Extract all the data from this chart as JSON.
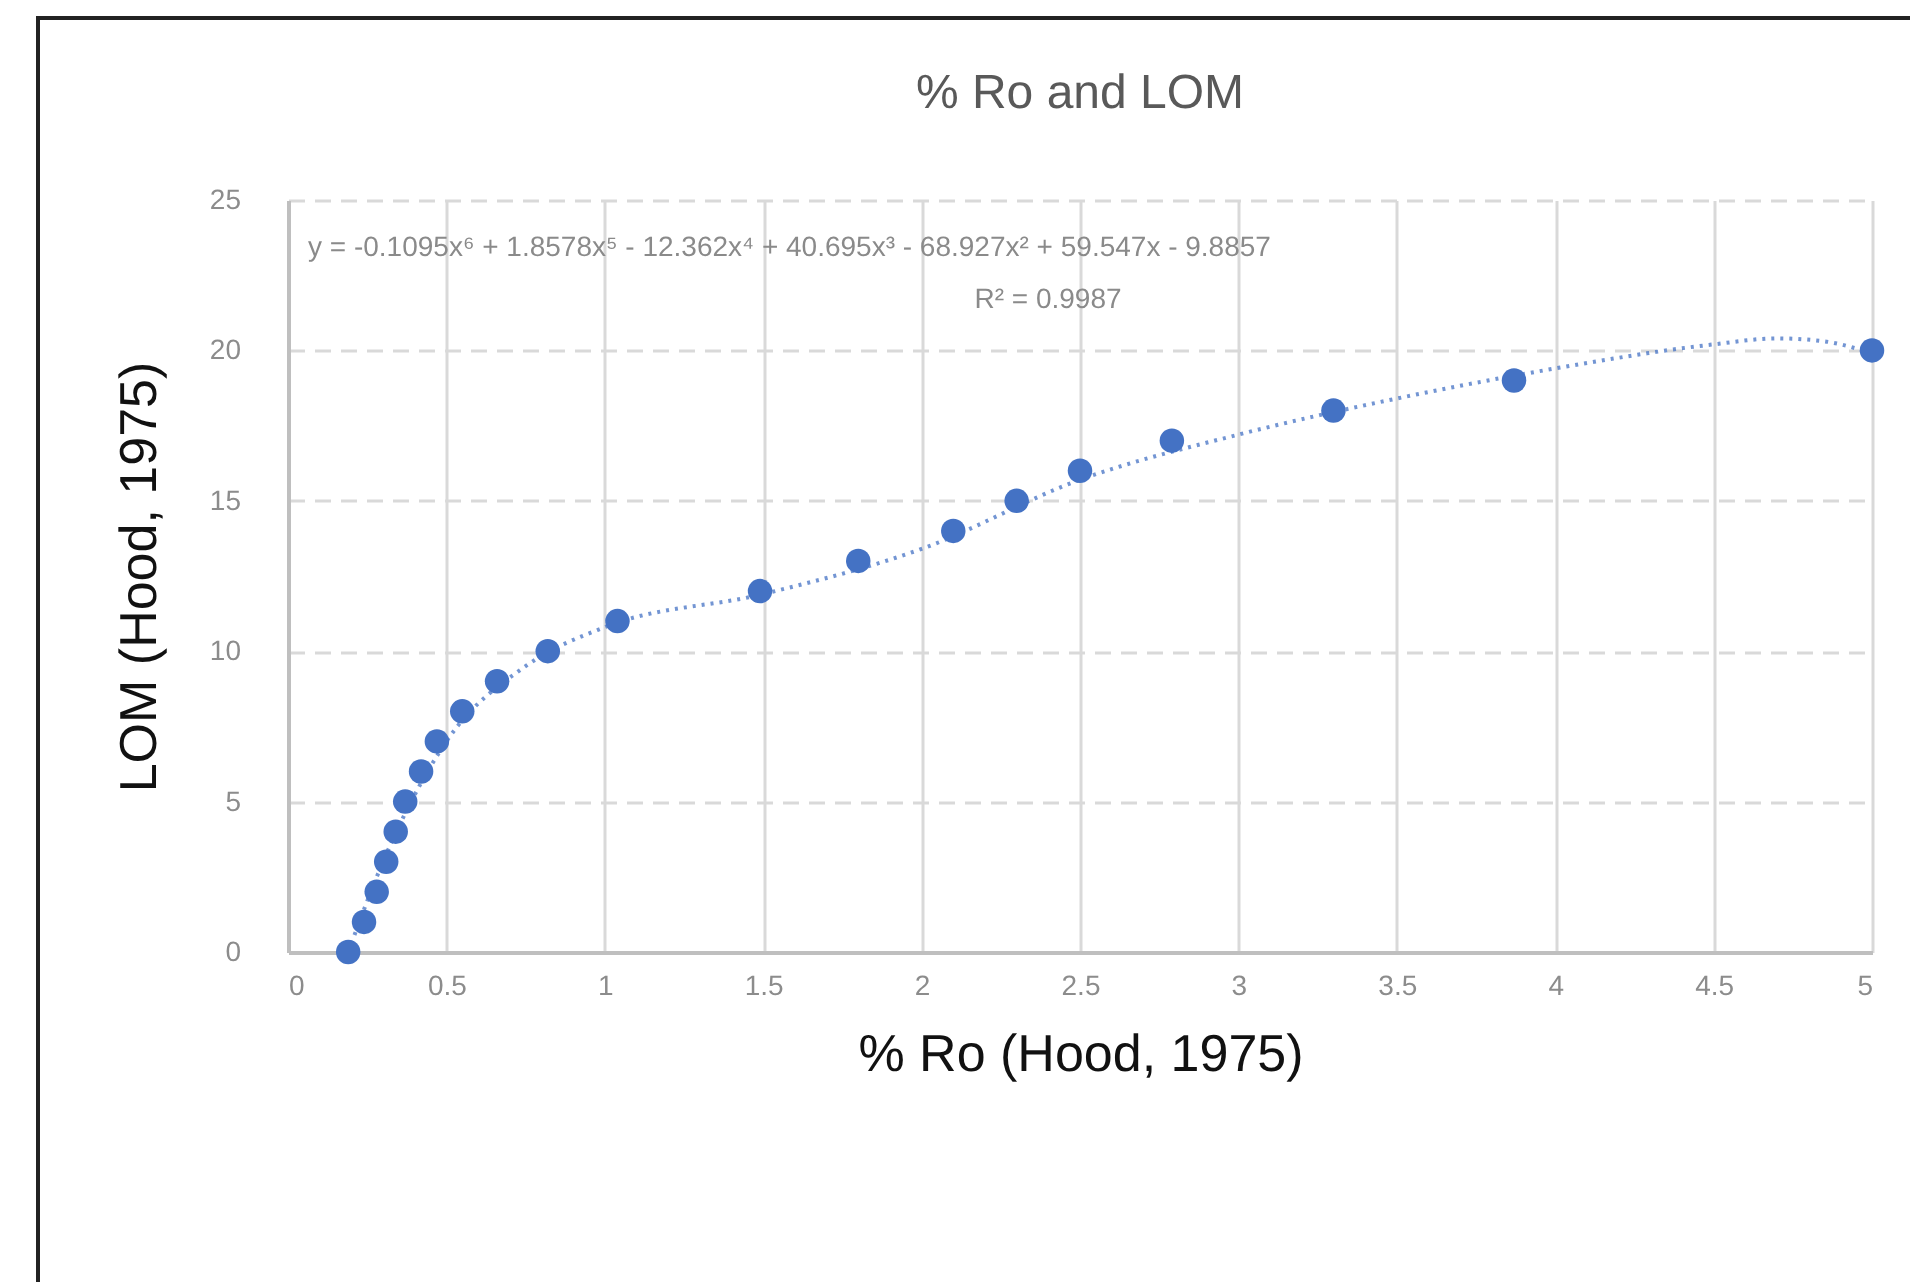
{
  "chart_data": {
    "type": "scatter",
    "title": "% Ro and LOM",
    "xlabel": "% Ro (Hood, 1975)",
    "ylabel": "LOM (Hood, 1975)",
    "xlim": [
      0,
      5
    ],
    "xticks": [
      0,
      0.5,
      1,
      1.5,
      2,
      2.5,
      3,
      3.5,
      4,
      4.5,
      5
    ],
    "ylim": [
      0,
      25
    ],
    "yticks": [
      0,
      5,
      10,
      15,
      20,
      25
    ],
    "grid": true,
    "marker": "circle",
    "series": [
      {
        "color": "#4472c4",
        "x": [
          0.19,
          0.24,
          0.28,
          0.31,
          0.34,
          0.37,
          0.42,
          0.47,
          0.55,
          0.66,
          0.82,
          1.04,
          1.49,
          1.8,
          2.1,
          2.3,
          2.5,
          2.79,
          3.3,
          3.87,
          5.0
        ],
        "values": [
          0,
          1,
          2,
          3,
          4,
          5,
          6,
          7,
          8,
          9,
          10,
          11,
          12,
          13,
          14,
          15,
          16,
          17,
          18,
          19,
          20
        ]
      },
      {
        "type": "line",
        "color": "#4472c4",
        "line_style": "dotted",
        "marker": "none",
        "x": [
          0.19,
          0.3,
          0.5,
          0.75,
          1,
          1.5,
          2,
          2.5,
          3,
          3.5,
          4,
          4.5,
          4.7,
          4.85,
          5
        ],
        "values": [
          0,
          3,
          7,
          9.5,
          10.8,
          11.9,
          13.4,
          15.7,
          17.2,
          18.4,
          19.4,
          20.2,
          20.4,
          20.3,
          19.9
        ]
      }
    ],
    "annotations": [
      "y = -0.1095x⁶ + 1.8578x⁵ - 12.362x⁴ + 40.695x³ - 68.927x² + 59.547x - 9.8857",
      "R² = 0.9987"
    ]
  }
}
